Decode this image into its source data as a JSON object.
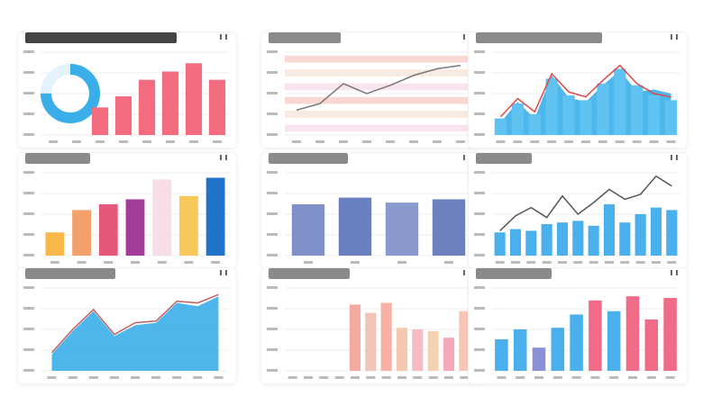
{
  "chart_data": [
    {
      "type": "bar",
      "extra": {
        "donut": {
          "value": 75,
          "color": "#3aaee8"
        }
      },
      "title": "",
      "categories": [
        "",
        "",
        "",
        "",
        "",
        "",
        "",
        ""
      ],
      "ylim": [
        0,
        60
      ],
      "series": [
        {
          "color": "#f36b7f",
          "values": [
            0,
            0,
            20,
            28,
            40,
            46,
            52,
            40
          ]
        }
      ],
      "legend": "none"
    },
    {
      "type": "line",
      "title": "",
      "categories": [
        "",
        "",
        "",
        "",
        "",
        "",
        "",
        ""
      ],
      "ylim": [
        0,
        100
      ],
      "bands": [
        "#f7c6c0",
        "#f8e0d2",
        "#f3d8e8",
        "#f7c6c0",
        "#f8e0d2",
        "#f3d8e8"
      ],
      "series": [
        {
          "color": "#777777",
          "values": [
            30,
            38,
            62,
            50,
            60,
            72,
            80,
            84
          ]
        }
      ],
      "legend": "none"
    },
    {
      "type": "bar",
      "title": "",
      "categories": [
        "",
        "",
        "",
        "",
        "",
        "",
        "",
        "",
        "",
        "",
        ""
      ],
      "ylim": [
        0,
        100
      ],
      "series": [
        {
          "type": "area",
          "color": "#3aaee8",
          "values": [
            15,
            40,
            20,
            72,
            45,
            40,
            60,
            78,
            52,
            55,
            50
          ]
        },
        {
          "color": "#5fc2f0",
          "values": [
            20,
            38,
            25,
            68,
            48,
            42,
            62,
            80,
            60,
            48,
            42
          ]
        },
        {
          "type": "line",
          "color": "#e04646",
          "values": [
            22,
            44,
            28,
            74,
            52,
            46,
            66,
            84,
            62,
            50,
            46
          ]
        }
      ],
      "legend": "none"
    },
    {
      "type": "bar",
      "title": "",
      "categories": [
        "",
        "",
        "",
        "",
        "",
        "",
        ""
      ],
      "ylim": [
        0,
        100
      ],
      "series": [
        {
          "colors": [
            "#f9b84a",
            "#f4a06b",
            "#e5587a",
            "#a43c9a",
            "#f7dde8",
            "#f9c85a",
            "#1f73c9"
          ],
          "values": [
            28,
            55,
            62,
            68,
            92,
            72,
            94
          ]
        }
      ],
      "legend": "none"
    },
    {
      "type": "bar",
      "title": "",
      "categories": [
        "",
        "",
        "",
        ""
      ],
      "ylim": [
        0,
        100
      ],
      "series": [
        {
          "colors": [
            "#8090c8",
            "#6a7fc0",
            "#8a9acf",
            "#6d80be"
          ],
          "values": [
            62,
            70,
            64,
            68
          ]
        }
      ],
      "legend": "none"
    },
    {
      "type": "bar",
      "title": "",
      "categories": [
        "",
        "",
        "",
        "",
        "",
        "",
        "",
        "",
        "",
        "",
        "",
        ""
      ],
      "ylim": [
        0,
        100
      ],
      "series": [
        {
          "color": "#4ab0ec",
          "values": [
            28,
            32,
            30,
            38,
            40,
            42,
            36,
            62,
            40,
            50,
            58,
            55
          ]
        },
        {
          "type": "line",
          "color": "#555555",
          "values": [
            30,
            48,
            58,
            46,
            72,
            50,
            64,
            80,
            68,
            74,
            96,
            84
          ]
        }
      ],
      "legend": "none"
    },
    {
      "type": "area",
      "title": "",
      "categories": [
        "",
        "",
        "",
        "",
        "",
        "",
        "",
        "",
        ""
      ],
      "ylim": [
        0,
        100
      ],
      "series": [
        {
          "color": "#3aaee8",
          "values": [
            20,
            48,
            72,
            42,
            55,
            58,
            82,
            78,
            90
          ]
        },
        {
          "type": "line",
          "color": "#c06060",
          "values": [
            22,
            50,
            74,
            44,
            58,
            60,
            84,
            82,
            92
          ]
        }
      ],
      "legend": "none"
    },
    {
      "type": "bar",
      "title": "",
      "categories": [
        "",
        "",
        "",
        "",
        "",
        "",
        "",
        "",
        "",
        "",
        "",
        ""
      ],
      "ylim": [
        0,
        100
      ],
      "series": [
        {
          "colors": [
            "#f5a6b4",
            "#f8c5a6",
            "#f6b3c2",
            "#f9d1a8",
            "#f4a9a1",
            "#f2c4b8",
            "#f7b2a5",
            "#f5c9b0",
            "#f6bcc4",
            "#f3d2b0",
            "#f4a9ba",
            "#f7c6b6"
          ],
          "values": [
            0,
            0,
            0,
            0,
            80,
            70,
            82,
            52,
            50,
            48,
            40,
            72
          ]
        }
      ],
      "legend": "none"
    },
    {
      "type": "bar",
      "title": "",
      "categories": [
        "",
        "",
        "",
        "",
        "",
        "",
        "",
        "",
        "",
        ""
      ],
      "ylim": [
        0,
        100
      ],
      "series": [
        {
          "colors": [
            "#4ab0ec",
            "#4ab0ec",
            "#8a8fd6",
            "#4ab0ec",
            "#4ab0ec",
            "#f06b88",
            "#4ab0ec",
            "#f06b88",
            "#f06b88",
            "#f06b88"
          ],
          "values": [
            38,
            50,
            28,
            52,
            68,
            85,
            72,
            90,
            62,
            88
          ]
        }
      ],
      "legend": "none"
    }
  ]
}
